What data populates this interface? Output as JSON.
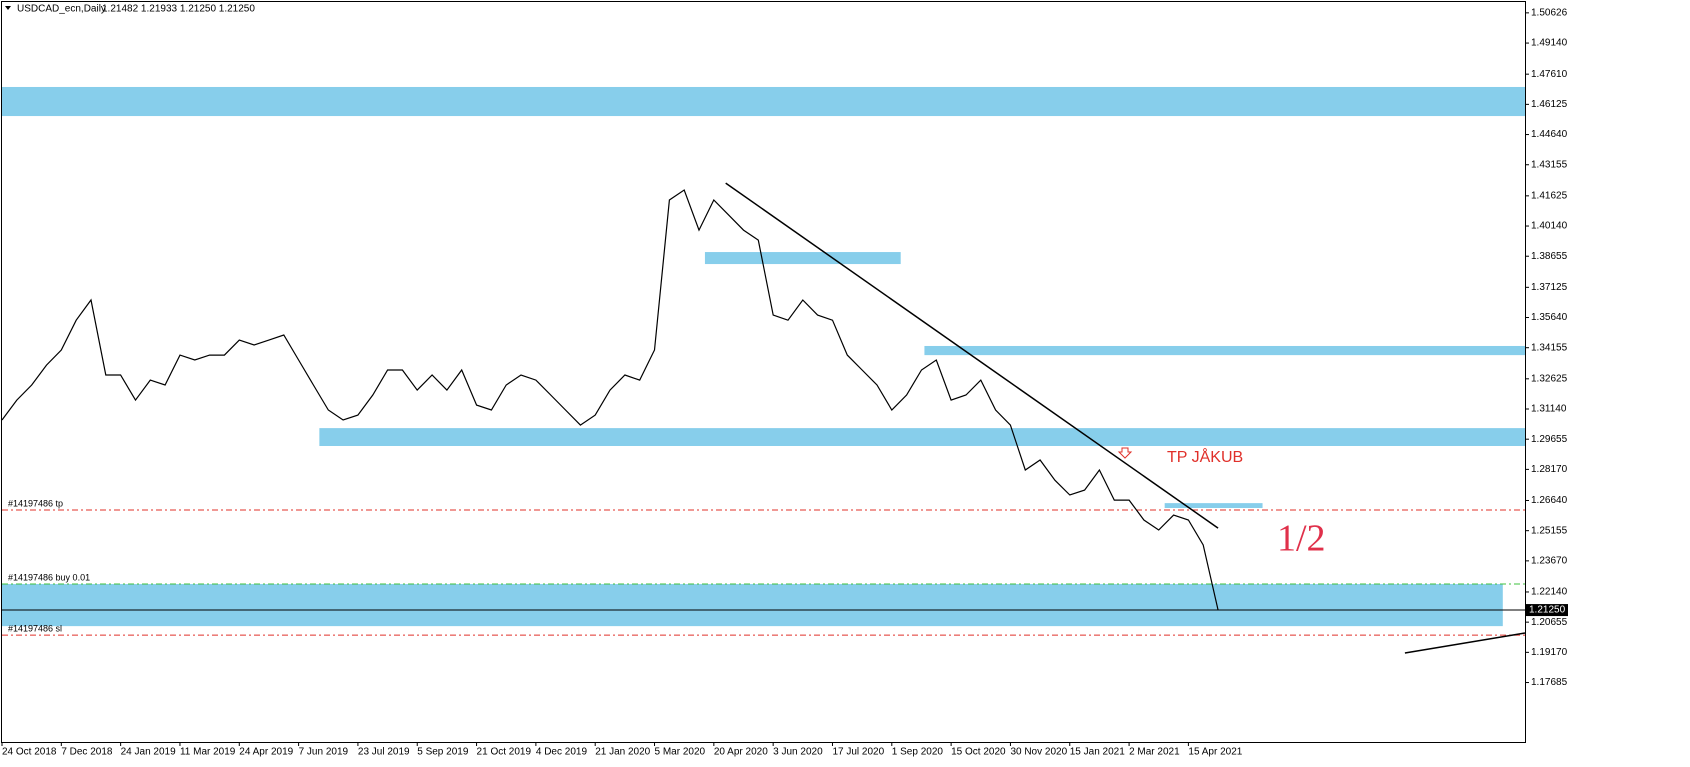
{
  "chart_data": {
    "type": "line",
    "title": "USDCAD_ecn,Daily",
    "subtitle": "1.21482 1.21933 1.21250 1.21250",
    "color": "#000000",
    "categories": [
      "24 Oct 2018",
      null,
      null,
      null,
      "7 Dec 2018",
      null,
      null,
      null,
      "24 Jan 2019",
      null,
      null,
      null,
      "11 Mar 2019",
      null,
      null,
      null,
      "24 Apr 2019",
      null,
      null,
      null,
      "7 Jun 2019",
      null,
      null,
      null,
      "23 Jul 2019",
      null,
      null,
      null,
      "5 Sep 2019",
      null,
      null,
      null,
      "21 Oct 2019",
      null,
      null,
      null,
      "4 Dec 2019",
      null,
      null,
      null,
      "21 Jan 2020",
      null,
      null,
      null,
      "5 Mar 2020",
      null,
      null,
      null,
      "20 Apr 2020",
      null,
      null,
      null,
      "3 Jun 2020",
      null,
      null,
      null,
      "17 Jul 2020",
      null,
      null,
      null,
      "1 Sep 2020",
      null,
      null,
      null,
      "15 Oct 2020",
      null,
      null,
      null,
      "30 Nov 2020",
      null,
      null,
      null,
      "15 Jan 2021",
      null,
      null,
      null,
      "2 Mar 2021",
      null,
      null,
      null,
      "15 Apr 2021",
      null,
      null
    ],
    "values": [
      1.306,
      1.3158,
      1.3232,
      1.333,
      1.3404,
      1.3551,
      1.365,
      1.3281,
      1.3281,
      1.3158,
      1.3256,
      1.3232,
      1.3379,
      1.3355,
      1.3379,
      1.3379,
      1.3453,
      1.3429,
      1.3453,
      1.3478,
      1.3355,
      1.3232,
      1.3109,
      1.306,
      1.3084,
      1.3183,
      1.3306,
      1.3306,
      1.3207,
      1.3281,
      1.3207,
      1.3306,
      1.3133,
      1.3109,
      1.3232,
      1.3281,
      1.3256,
      1.3183,
      1.3109,
      1.3035,
      1.3084,
      1.3207,
      1.3281,
      1.3256,
      1.3404,
      1.4142,
      1.4191,
      1.3994,
      1.4142,
      1.4068,
      1.3994,
      1.3945,
      1.3576,
      1.3551,
      1.365,
      1.3576,
      1.3551,
      1.3379,
      1.3306,
      1.3232,
      1.3109,
      1.3183,
      1.3306,
      1.3355,
      1.3158,
      1.3183,
      1.3256,
      1.3109,
      1.3035,
      1.2814,
      1.2863,
      1.2764,
      1.2691,
      1.2715,
      1.2814,
      1.2666,
      1.2666,
      1.2568,
      1.2519,
      1.2592,
      1.2568,
      1.2445,
      1.2125
    ],
    "ylim": [
      1.1476,
      1.5116
    ],
    "yticks": [
      1.50626,
      {
        "value": 1.4914,
        "label": "1.49140"
      },
      {
        "value": 1.4761,
        "label": "1.47610"
      },
      1.46125,
      {
        "value": 1.4464,
        "label": "1.44640"
      },
      1.43155,
      1.41625,
      {
        "value": 1.4014,
        "label": "1.40140"
      },
      1.38655,
      1.37125,
      {
        "value": 1.3564,
        "label": "1.35640"
      },
      1.34155,
      1.32625,
      {
        "value": 1.3114,
        "label": "1.31140"
      },
      1.29655,
      {
        "value": 1.2817,
        "label": "1.28170"
      },
      {
        "value": 1.2664,
        "label": "1.26640"
      },
      1.25155,
      {
        "value": 1.2367,
        "label": "1.23670"
      },
      {
        "value": 1.2214,
        "label": "1.22140"
      },
      1.20655,
      {
        "value": 1.1917,
        "label": "1.19170"
      },
      1.17685
    ],
    "price_line": {
      "value": 1.2125,
      "label": "1.21250"
    },
    "zones": [
      {
        "range": [
          1.4698,
          1.4555
        ],
        "x_range": [
          0,
          102.7
        ]
      },
      {
        "range": [
          1.3886,
          1.3827
        ],
        "x_range": [
          47.4,
          60.6
        ]
      },
      {
        "range": [
          1.3424,
          1.3379
        ],
        "x_range": [
          62.2,
          102.7
        ]
      },
      {
        "range": [
          1.302,
          1.2932
        ],
        "x_range": [
          21.4,
          102.7
        ]
      },
      {
        "range": [
          1.2651,
          1.2627
        ],
        "x_range": [
          78.4,
          85.0
        ]
      },
      {
        "range": [
          1.2253,
          1.2046
        ],
        "x_range": [
          0,
          101.2
        ]
      }
    ],
    "levels": [
      {
        "label": "#14197486 tp",
        "value": 1.2617,
        "color": "#e0302a"
      },
      {
        "label": "#14197486 buy 0.01",
        "value": 1.2253,
        "color": "#3cc03c"
      },
      {
        "label": "#14197486 sl",
        "value": 1.2002,
        "color": "#e0302a"
      }
    ],
    "trendlines": [
      {
        "x": [
          48.8,
          82.0
        ],
        "y": [
          1.4225,
          1.2528
        ]
      },
      {
        "x": [
          94.6,
          102.7
        ],
        "y": [
          1.1914,
          1.2012
        ]
      }
    ],
    "annotations": [
      "TP JÅKUB",
      "1/2"
    ]
  }
}
